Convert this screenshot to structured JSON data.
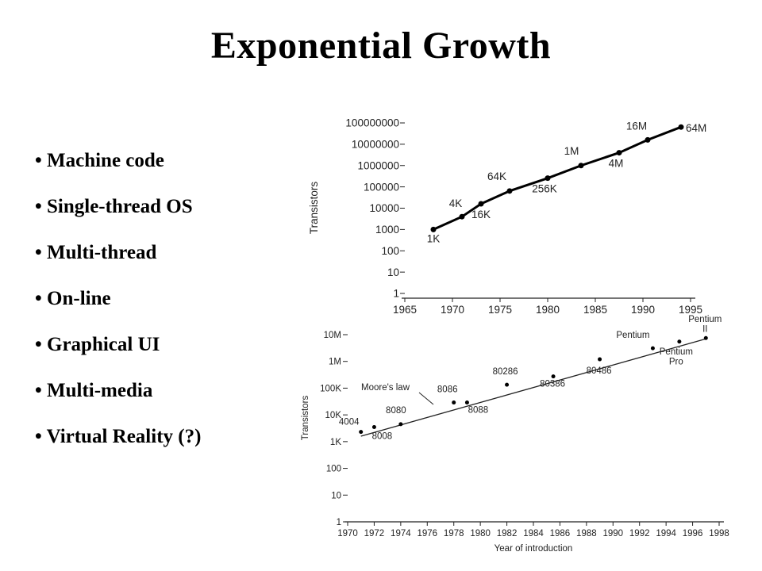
{
  "slide": {
    "title": "Exponential Growth",
    "bullets": [
      "Machine code",
      "Single-thread OS",
      "Multi-thread",
      "On-line",
      "Graphical UI",
      "Multi-media",
      "Virtual Reality (?)"
    ]
  },
  "chart_data": [
    {
      "type": "line",
      "title": "",
      "xlabel": "",
      "ylabel": "Transistors",
      "yscale": "log",
      "xlim": [
        1965,
        1995
      ],
      "ylim": [
        1,
        100000000
      ],
      "x_ticks": [
        "1965",
        "1970",
        "1975",
        "1980",
        "1985",
        "1990",
        "1995"
      ],
      "y_ticks": [
        "1",
        "10",
        "100",
        "1000",
        "10000",
        "100000",
        "1000000",
        "10000000",
        "100000000"
      ],
      "grid": false,
      "series": [
        {
          "x": [
            1968,
            1971,
            1973,
            1976,
            1980,
            1983.5,
            1987.5,
            1990.5,
            1994
          ],
          "y": [
            1000,
            4000,
            16000,
            64000,
            256000,
            1000000,
            4000000,
            16000000,
            64000000
          ],
          "labels": [
            "1K",
            "4K",
            "16K",
            "64K",
            "256K",
            "1M",
            "4M",
            "16M",
            "64M"
          ]
        }
      ]
    },
    {
      "type": "scatter",
      "title": "",
      "xlabel": "Year of introduction",
      "ylabel": "Transistors",
      "yscale": "log",
      "xlim": [
        1970,
        1998
      ],
      "ylim": [
        1,
        10000000
      ],
      "x_ticks": [
        "1970",
        "1972",
        "1974",
        "1976",
        "1978",
        "1980",
        "1982",
        "1984",
        "1986",
        "1988",
        "1990",
        "1992",
        "1994",
        "1996",
        "1998"
      ],
      "y_ticks": [
        "1",
        "10",
        "100",
        "1K",
        "10K",
        "100K",
        "1M",
        "10M"
      ],
      "grid": false,
      "trend_label": "Moore's law",
      "trend": {
        "x": [
          1971,
          1997
        ],
        "y": [
          1600,
          7000000
        ]
      },
      "series": [
        {
          "x": [
            1971,
            1972,
            1974,
            1978,
            1979,
            1982,
            1985.5,
            1989,
            1993,
            1995,
            1997
          ],
          "y": [
            2300,
            3500,
            4500,
            29000,
            29000,
            134000,
            275000,
            1200000,
            3100000,
            5500000,
            7500000
          ],
          "labels": [
            "4004",
            "8008",
            "8080",
            "8086",
            "8088",
            "80286",
            "80386",
            "80486",
            "Pentium",
            "Pentium Pro",
            "Pentium II"
          ]
        }
      ]
    }
  ]
}
